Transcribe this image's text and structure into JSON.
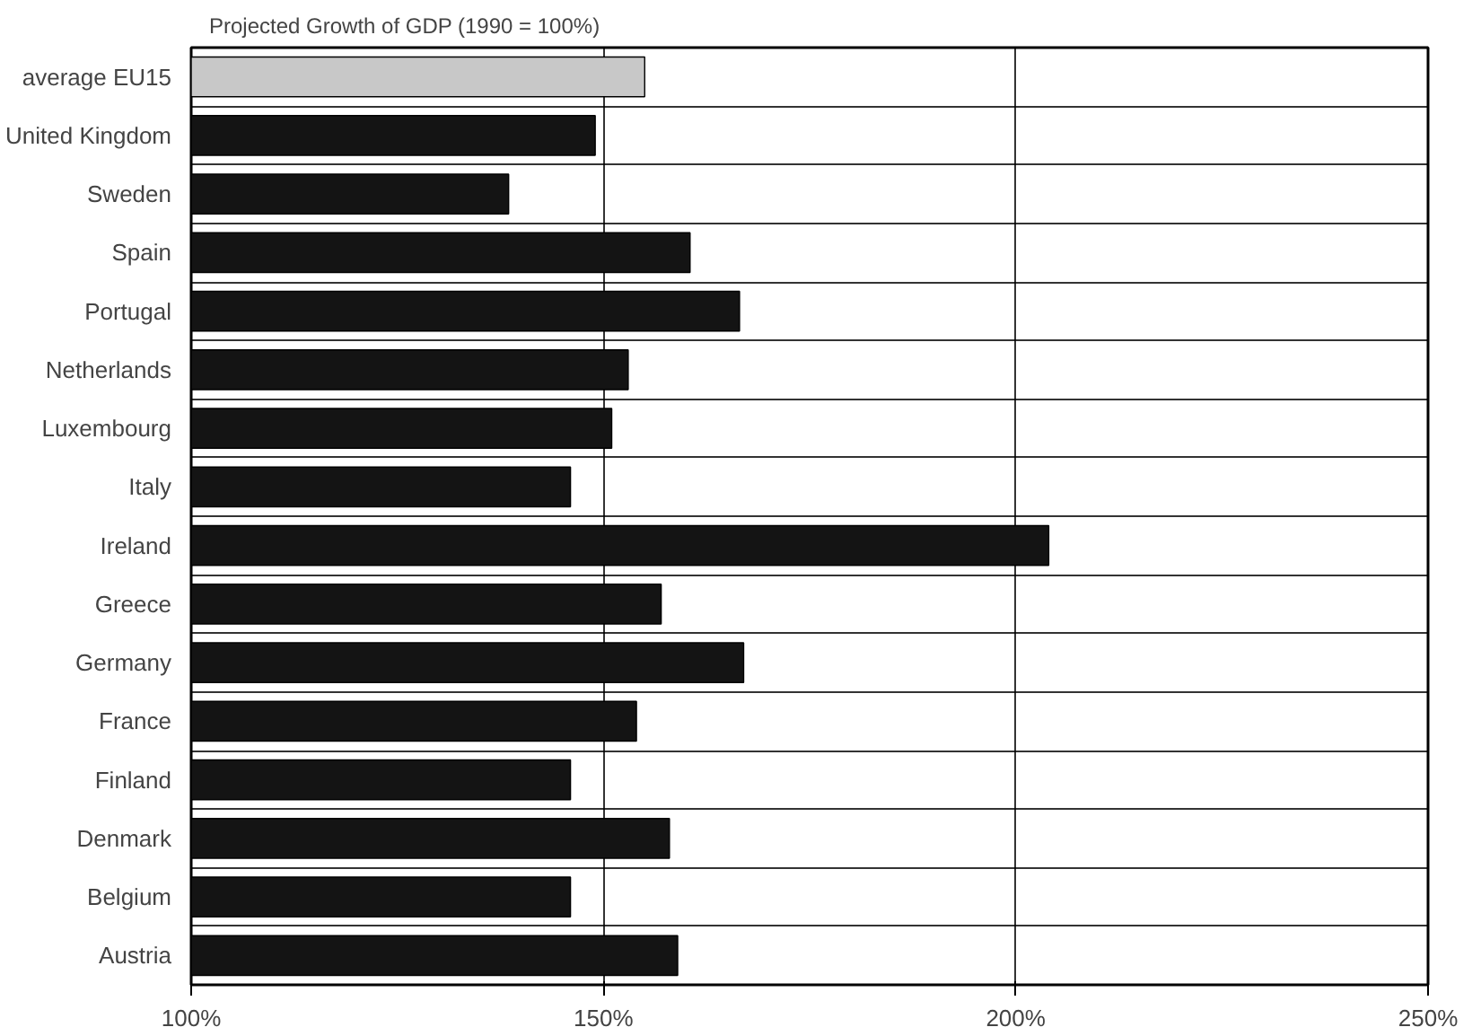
{
  "chart_data": {
    "type": "bar",
    "orientation": "horizontal",
    "title": "Projected Growth of GDP (1990 = 100%)",
    "categories": [
      "average EU15",
      "United Kingdom",
      "Sweden",
      "Spain",
      "Portugal",
      "Netherlands",
      "Luxembourg",
      "Italy",
      "Ireland",
      "Greece",
      "Germany",
      "France",
      "Finland",
      "Denmark",
      "Belgium",
      "Austria"
    ],
    "values": [
      155,
      149,
      138.5,
      160.5,
      166.5,
      153,
      151,
      146,
      204,
      157,
      167,
      154,
      146,
      158,
      146,
      159
    ],
    "colors": [
      "#c8c8c8",
      "#141414",
      "#141414",
      "#141414",
      "#141414",
      "#141414",
      "#141414",
      "#141414",
      "#141414",
      "#141414",
      "#141414",
      "#141414",
      "#141414",
      "#141414",
      "#141414",
      "#141414"
    ],
    "xlim": [
      100,
      250
    ],
    "xticks": [
      {
        "value": 100,
        "label": "100%"
      },
      {
        "value": 150,
        "label": "150%"
      },
      {
        "value": 200,
        "label": "200%"
      },
      {
        "value": 250,
        "label": "250%"
      }
    ],
    "grid": true
  }
}
